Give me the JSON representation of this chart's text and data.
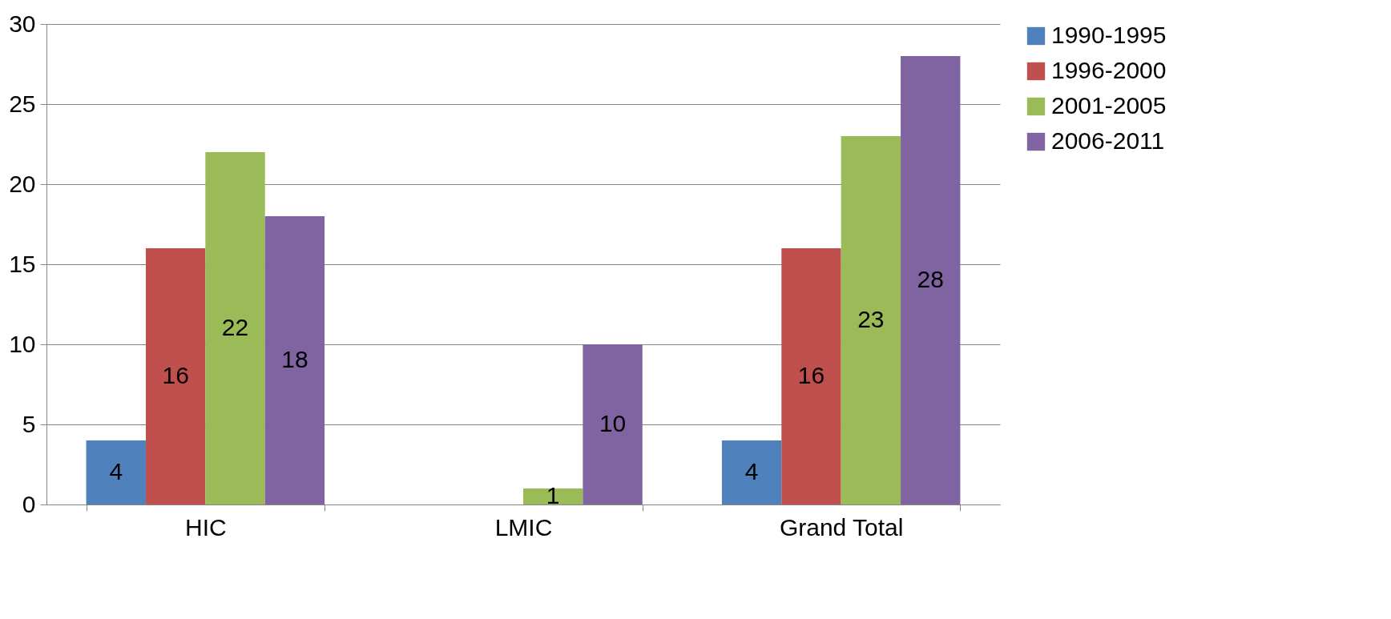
{
  "chart_data": {
    "type": "bar",
    "categories": [
      "HIC",
      "LMIC",
      "Grand Total"
    ],
    "series": [
      {
        "name": "1990-1995",
        "color": "#4f81bd",
        "values": [
          4,
          null,
          4
        ]
      },
      {
        "name": "1996-2000",
        "color": "#c0504d",
        "values": [
          16,
          null,
          16
        ]
      },
      {
        "name": "2001-2005",
        "color": "#9bbb59",
        "values": [
          22,
          1,
          23
        ]
      },
      {
        "name": "2006-2011",
        "color": "#8064a2",
        "values": [
          18,
          10,
          28
        ]
      }
    ],
    "ylim": [
      0,
      30
    ],
    "yticks": [
      0,
      5,
      10,
      15,
      20,
      25,
      30
    ],
    "grid": "y",
    "legend": "right",
    "data_labels": true
  }
}
